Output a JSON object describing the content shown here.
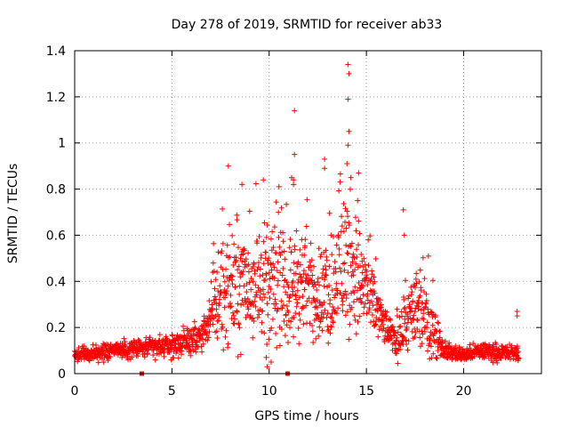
{
  "chart_data": {
    "type": "scatter",
    "title": "Day 278 of 2019, SRMTID for receiver ab33",
    "xlabel": "GPS time / hours",
    "ylabel": "SRMTID / TECUs",
    "xlim": [
      0,
      24
    ],
    "ylim": [
      0,
      1.4
    ],
    "xticks": [
      0,
      5,
      10,
      15,
      20
    ],
    "xtick_labels": [
      "0",
      "5",
      "10",
      "15",
      "20"
    ],
    "yticks": [
      0,
      0.2,
      0.4,
      0.6,
      0.8,
      1.0,
      1.2,
      1.4
    ],
    "ytick_labels": [
      "0",
      "0.2",
      "0.4",
      "0.6",
      "0.8",
      "1",
      "1.2",
      "1.4"
    ],
    "grid": true,
    "marker": "+",
    "marker_color": "#ff0000",
    "gap_markers": [
      3.45,
      10.95
    ],
    "x_end": 22.85,
    "profile": {
      "x": [
        0,
        2,
        3.5,
        5,
        6.5,
        7,
        7.5,
        8,
        9,
        10,
        11,
        12,
        13,
        14,
        15,
        16,
        16.5,
        17,
        17.5,
        18,
        18.5,
        19,
        20,
        21,
        22,
        22.85
      ],
      "y": [
        0.08,
        0.1,
        0.11,
        0.12,
        0.16,
        0.25,
        0.34,
        0.38,
        0.4,
        0.37,
        0.36,
        0.38,
        0.32,
        0.5,
        0.36,
        0.2,
        0.14,
        0.2,
        0.28,
        0.24,
        0.18,
        0.1,
        0.08,
        0.1,
        0.09,
        0.09
      ]
    },
    "outliers": [
      {
        "x": 14.05,
        "y": 1.34
      },
      {
        "x": 14.1,
        "y": 1.3
      },
      {
        "x": 14.05,
        "y": 1.19
      },
      {
        "x": 14.1,
        "y": 1.05
      },
      {
        "x": 14.05,
        "y": 0.99
      },
      {
        "x": 14.0,
        "y": 0.91
      },
      {
        "x": 11.3,
        "y": 1.14
      },
      {
        "x": 11.3,
        "y": 0.95
      },
      {
        "x": 12.85,
        "y": 0.93
      },
      {
        "x": 12.85,
        "y": 0.89
      },
      {
        "x": 7.9,
        "y": 0.9
      },
      {
        "x": 9.7,
        "y": 0.84
      },
      {
        "x": 11.25,
        "y": 0.84
      },
      {
        "x": 11.25,
        "y": 0.82
      },
      {
        "x": 16.9,
        "y": 0.71
      },
      {
        "x": 14.6,
        "y": 0.87
      },
      {
        "x": 14.2,
        "y": 0.85
      },
      {
        "x": 8.6,
        "y": 0.82
      },
      {
        "x": 9.9,
        "y": 0.03
      },
      {
        "x": 10.1,
        "y": 0.05
      },
      {
        "x": 9.85,
        "y": 0.07
      },
      {
        "x": 22.75,
        "y": 0.27
      },
      {
        "x": 22.75,
        "y": 0.25
      },
      {
        "x": 16.95,
        "y": 0.6
      },
      {
        "x": 3.45,
        "y": 0.0
      },
      {
        "x": 10.95,
        "y": 0.0
      }
    ]
  }
}
